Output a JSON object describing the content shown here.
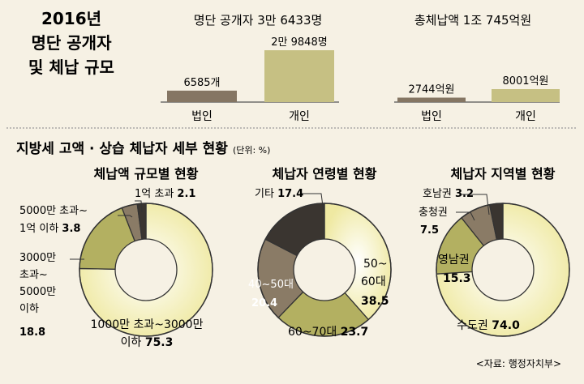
{
  "main_title": [
    "2016년",
    "명단 공개자",
    "및 체납 규모"
  ],
  "colors": {
    "background": "#f6f1e4",
    "corporate_bar": "#857663",
    "individual_bar": "#c6c083",
    "dark": "#3a3530",
    "brown": "#8a7b66",
    "olive": "#b3b061",
    "yellow_light": "#fffbe8",
    "yellow_dark": "#eee9a0",
    "white": "#ffffff",
    "divider": "#999999"
  },
  "section_title": "지방세 고액 · 상습 체납자 세부 현황",
  "unit": "(단위: %)",
  "source": "<자료: 행정자치부>",
  "chart_data": [
    {
      "type": "bar",
      "title": "명단 공개자 3만 6433명",
      "categories": [
        "법인",
        "개인"
      ],
      "values": [
        6585,
        29848
      ],
      "value_labels": [
        "6585개",
        "2만 9848명"
      ]
    },
    {
      "type": "bar",
      "title": "총체납액 1조 745억원",
      "categories": [
        "법인",
        "개인"
      ],
      "values": [
        2744,
        8001
      ],
      "value_labels": [
        "2744억원",
        "8001억원"
      ]
    },
    {
      "type": "pie",
      "title": "체납액 규모별 현황",
      "slices": [
        {
          "label": "1000만 초과~3000만 이하",
          "value": 75.3,
          "value_label": "75.3"
        },
        {
          "label": "3000만 초과~ 5000만 이하",
          "value": 18.8,
          "value_label": "18.8"
        },
        {
          "label": "5000만 초과~ 1억 이하",
          "value": 3.8,
          "value_label": "3.8"
        },
        {
          "label": "1억 초과",
          "value": 2.1,
          "value_label": "2.1"
        }
      ]
    },
    {
      "type": "pie",
      "title": "체납자 연령별 현황",
      "slices": [
        {
          "label": "50~ 60대",
          "value": 38.5,
          "value_label": "38.5"
        },
        {
          "label": "60~70대",
          "value": 23.7,
          "value_label": "23.7"
        },
        {
          "label": "40~50대",
          "value": 20.4,
          "value_label": "20.4"
        },
        {
          "label": "기타",
          "value": 17.4,
          "value_label": "17.4"
        }
      ]
    },
    {
      "type": "pie",
      "title": "체납자 지역별 현황",
      "slices": [
        {
          "label": "수도권",
          "value": 74.0,
          "value_label": "74.0"
        },
        {
          "label": "영남권",
          "value": 15.3,
          "value_label": "15.3"
        },
        {
          "label": "충청권",
          "value": 7.5,
          "value_label": "7.5"
        },
        {
          "label": "호남권",
          "value": 3.2,
          "value_label": "3.2"
        }
      ]
    }
  ]
}
